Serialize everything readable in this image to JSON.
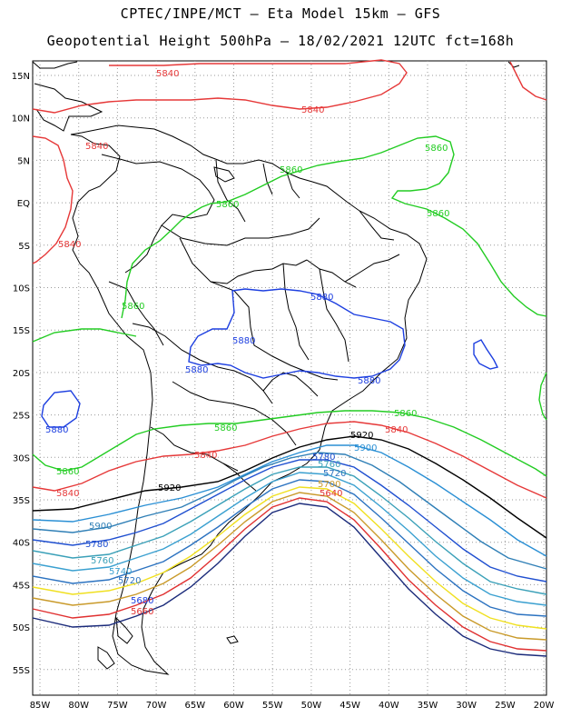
{
  "title_line1": "CPTEC/INPE/MCT –  Eta Model 15km – GFS",
  "title_line2": "Geopotential Height 500hPa – 18/02/2021 12UTC fct=168h",
  "colors": {
    "c5920": "#000000",
    "c5900": "#2a8fd4",
    "c5880": "#1d3fe0",
    "c5860": "#22cc22",
    "c5840": "#e63838",
    "c5800": "#2f7fb6",
    "c5780": "#1f4fd0",
    "c5760": "#3aa0b8",
    "c5740": "#3aa0d0",
    "c5720": "#2b72c0",
    "c5700": "#f0e020",
    "c5680": "#c99a2a",
    "c5660": "#e03030",
    "c5640": "#1a2a7a",
    "land": "#000000",
    "grid": "#9a9a9a"
  },
  "contour_labels": {
    "l5840_a": "5840",
    "l5840_b": "5840",
    "l5840_c": "5840",
    "l5840_d": "5840",
    "l5840_e": "5840",
    "l5840_f": "5840",
    "l5840_g": "5840",
    "l5860_a": "5860",
    "l5860_b": "5860",
    "l5860_c": "5860",
    "l5860_d": "5860",
    "l5860_e": "5860",
    "l5860_f": "5860",
    "l5860_g": "5860",
    "l5860_h": "5860",
    "l5880_a": "5880",
    "l5880_b": "5880",
    "l5880_c": "5880",
    "l5880_d": "5880",
    "l5880_e": "5880",
    "l5920_a": "5920",
    "l5920_b": "5920",
    "l5900_a": "5900",
    "l5900_b": "5900",
    "l5780_a": "5780",
    "l5780_b": "5780",
    "l5760_a": "5760",
    "l5760_b": "5760",
    "l5740_a": "5740",
    "l5720_a": "5720",
    "l5720_b": "5720",
    "l5700_a": "5700",
    "l5680_a": "5680",
    "l5660_a": "5660",
    "l5640_a": "5640"
  },
  "lat_ticks": [
    "15N",
    "10N",
    "5N",
    "EQ",
    "5S",
    "10S",
    "15S",
    "20S",
    "25S",
    "30S",
    "35S",
    "40S",
    "45S",
    "50S",
    "55S"
  ],
  "lon_ticks": [
    "85W",
    "80W",
    "75W",
    "70W",
    "65W",
    "60W",
    "55W",
    "50W",
    "45W",
    "40W",
    "35W",
    "30W",
    "25W",
    "20W"
  ]
}
